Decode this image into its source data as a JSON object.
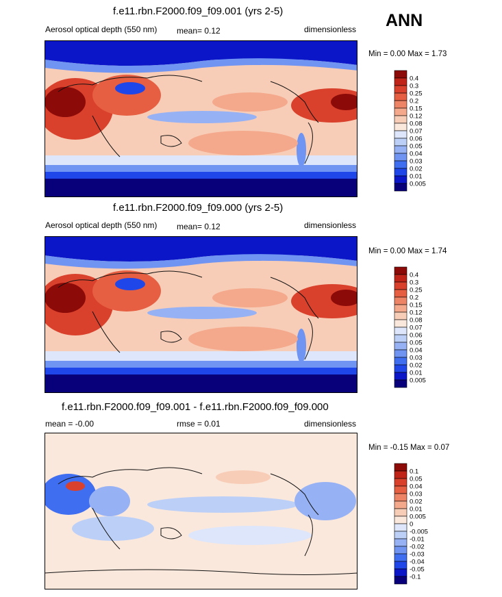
{
  "season_label": "ANN",
  "colors": {
    "scale": [
      "#08007a",
      "#0a16c8",
      "#1e46e8",
      "#3f6ef0",
      "#6f94f2",
      "#96b2f5",
      "#bcd0f7",
      "#dde6fa",
      "#fbe8dc",
      "#f8cdb7",
      "#f4a98c",
      "#ee8466",
      "#e65f42",
      "#d9412c",
      "#c02418",
      "#8c0a08"
    ]
  },
  "panels": [
    {
      "title": "f.e11.rbn.F2000.f09_f09.001 (yrs 2-5)",
      "left_label": "Aerosol optical depth (550 nm)",
      "center_label": "mean=  0.12",
      "right_label": "dimensionless",
      "minmax": "Min =  0.00 Max =  1.73"
    },
    {
      "title": "f.e11.rbn.F2000.f09_f09.000 (yrs 2-5)",
      "left_label": "Aerosol optical depth (550 nm)",
      "center_label": "mean=  0.12",
      "right_label": "dimensionless",
      "minmax": "Min =  0.00 Max =  1.74"
    },
    {
      "title": "f.e11.rbn.F2000.f09_f09.001 - f.e11.rbn.F2000.f09_f09.000",
      "left_label": "mean = -0.00",
      "center_label": "rmse =  0.01",
      "right_label": "dimensionless",
      "minmax": "Min =  -0.15 Max =  0.07"
    }
  ],
  "chart_data": [
    {
      "type": "heatmap",
      "title": "f.e11.rbn.F2000.f09_f09.001 (yrs 2-5)",
      "variable": "Aerosol optical depth (550 nm)",
      "units": "dimensionless",
      "mean": 0.12,
      "min": 0.0,
      "max": 1.73,
      "colorbar_levels": [
        "0.4",
        "0.3",
        "0.25",
        "0.2",
        "0.15",
        "0.12",
        "0.08",
        "0.07",
        "0.06",
        "0.05",
        "0.04",
        "0.03",
        "0.02",
        "0.01",
        "0.005"
      ]
    },
    {
      "type": "heatmap",
      "title": "f.e11.rbn.F2000.f09_f09.000 (yrs 2-5)",
      "variable": "Aerosol optical depth (550 nm)",
      "units": "dimensionless",
      "mean": 0.12,
      "min": 0.0,
      "max": 1.74,
      "colorbar_levels": [
        "0.4",
        "0.3",
        "0.25",
        "0.2",
        "0.15",
        "0.12",
        "0.08",
        "0.07",
        "0.06",
        "0.05",
        "0.04",
        "0.03",
        "0.02",
        "0.01",
        "0.005"
      ]
    },
    {
      "type": "heatmap",
      "title": "f.e11.rbn.F2000.f09_f09.001 - f.e11.rbn.F2000.f09_f09.000",
      "units": "dimensionless",
      "mean": -0.0,
      "rmse": 0.01,
      "min": -0.15,
      "max": 0.07,
      "colorbar_levels": [
        "0.1",
        "0.05",
        "0.04",
        "0.03",
        "0.02",
        "0.01",
        "0.005",
        "0",
        "-0.005",
        "-0.01",
        "-0.02",
        "-0.03",
        "-0.04",
        "-0.05",
        "-0.1"
      ]
    }
  ]
}
